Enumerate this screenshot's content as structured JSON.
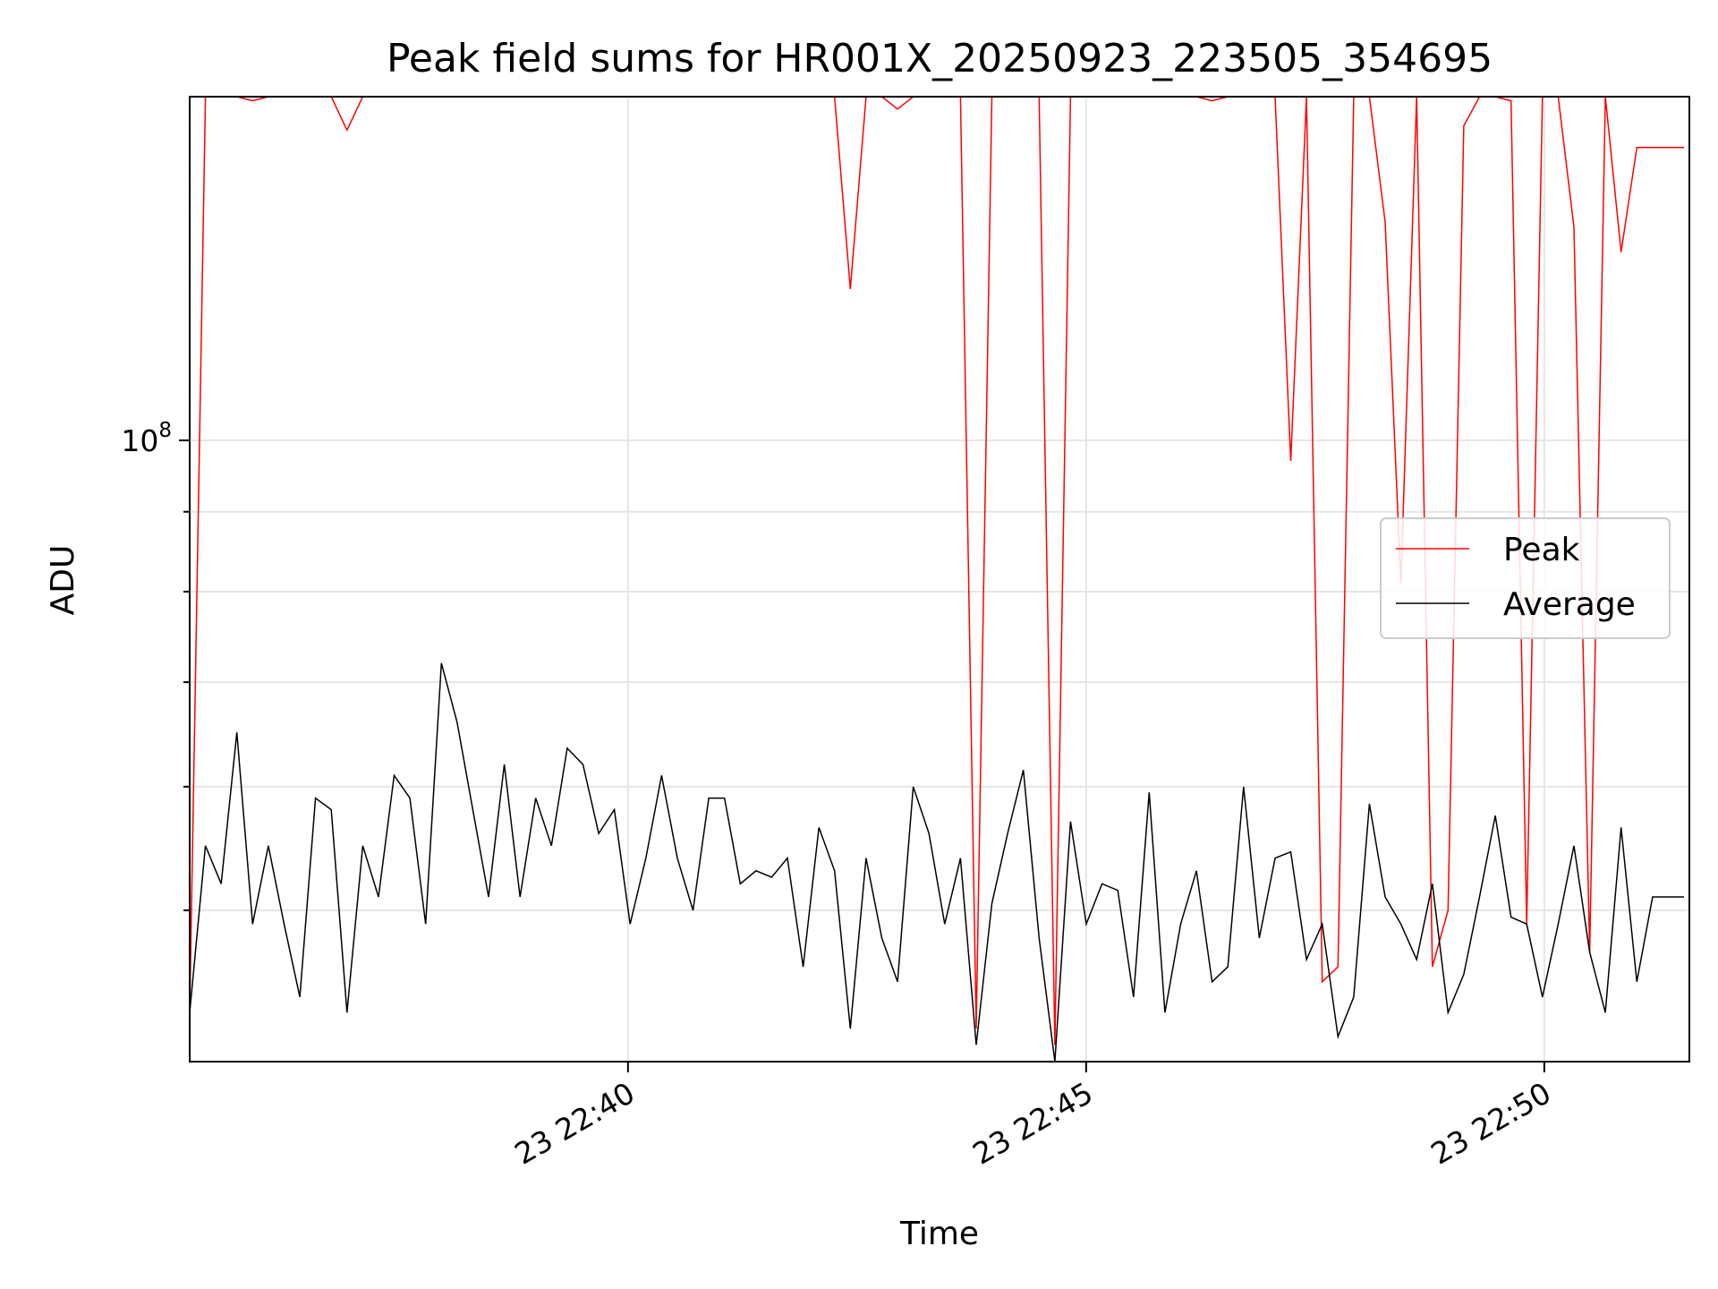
{
  "chart_data": {
    "type": "line",
    "title": "Peak field sums for HR001X_20250923_223505_354695",
    "xlabel": "Time",
    "ylabel": "ADU",
    "yscale": "log",
    "grid": true,
    "legend_position": "center-right",
    "x_range": [
      "2025-09-23 22:35:13",
      "2025-09-23 22:51:35"
    ],
    "y_range": [
      40000000.0,
      166000000.0
    ],
    "x_ticks": [
      {
        "value": "2025-09-23 22:40:00",
        "label": "23 22:40"
      },
      {
        "value": "2025-09-23 22:45:00",
        "label": "23 22:45"
      },
      {
        "value": "2025-09-23 22:50:00",
        "label": "23 22:50"
      }
    ],
    "y_ticks": [
      {
        "value": 100000000,
        "base": "10",
        "exponent": "8"
      }
    ],
    "series_times_start": "2025-09-23 22:35:13",
    "series_interval_seconds": 10.3,
    "series": [
      {
        "name": "Peak",
        "color": "#ff0000",
        "values": [
          43000000.0,
          166000000.0,
          166000000.0,
          166000000.0,
          165000000.0,
          166000000.0,
          166000000.0,
          166000000.0,
          166000000.0,
          166000000.0,
          158000000.0,
          166000000.0,
          166000000.0,
          166000000.0,
          166000000.0,
          166000000.0,
          166000000.0,
          166000000.0,
          166000000.0,
          166000000.0,
          166000000.0,
          166000000.0,
          166000000.0,
          166000000.0,
          166000000.0,
          166000000.0,
          166000000.0,
          166000000.0,
          166000000.0,
          166000000.0,
          166000000.0,
          166000000.0,
          166000000.0,
          166000000.0,
          166000000.0,
          166000000.0,
          166000000.0,
          166000000.0,
          166000000.0,
          166000000.0,
          166000000.0,
          166000000.0,
          125000000.0,
          166000000.0,
          166000000.0,
          163000000.0,
          166000000.0,
          166000000.0,
          166000000.0,
          166000000.0,
          42000000.0,
          166000000.0,
          166000000.0,
          166000000.0,
          166000000.0,
          41000000.0,
          166000000.0,
          166000000.0,
          166000000.0,
          166000000.0,
          166000000.0,
          166000000.0,
          166000000.0,
          166000000.0,
          166000000.0,
          165000000.0,
          166000000.0,
          166000000.0,
          166000000.0,
          166000000.0,
          97000000.0,
          166000000.0,
          45000000.0,
          46000000.0,
          166000000.0,
          166000000.0,
          138000000.0,
          81000000.0,
          166000000.0,
          46000000.0,
          50000000.0,
          159000000.0,
          166000000.0,
          166000000.0,
          165000000.0,
          49000000.0,
          166000000.0,
          166000000.0,
          137000000.0,
          47000000.0,
          166000000.0,
          132000000.0,
          154000000.0,
          154000000.0,
          154000000.0,
          154000000.0
        ]
      },
      {
        "name": "Average",
        "color": "#000000",
        "values": [
          43000000.0,
          55000000.0,
          52000000.0,
          65000000.0,
          49000000.0,
          55000000.0,
          49000000.0,
          44000000.0,
          59000000.0,
          58000000.0,
          43000000.0,
          55000000.0,
          51000000.0,
          61000000.0,
          59000000.0,
          49000000.0,
          72000000.0,
          66000000.0,
          58000000.0,
          51000000.0,
          62000000.0,
          51000000.0,
          59000000.0,
          55000000.0,
          63500000.0,
          62000000.0,
          56000000.0,
          58000000.0,
          49000000.0,
          54000000.0,
          61000000.0,
          54000000.0,
          50000000.0,
          59000000.0,
          59000000.0,
          52000000.0,
          53000000.0,
          52500000.0,
          54000000.0,
          46000000.0,
          56500000.0,
          53000000.0,
          42000000.0,
          54000000.0,
          48000000.0,
          45000000.0,
          60000000.0,
          56000000.0,
          49000000.0,
          54000000.0,
          41000000.0,
          50500000.0,
          56000000.0,
          61500000.0,
          48000000.0,
          40000000.0,
          57000000.0,
          49000000.0,
          52000000.0,
          51500000.0,
          44000000.0,
          59500000.0,
          43000000.0,
          49000000.0,
          53000000.0,
          45000000.0,
          46000000.0,
          60000000.0,
          48000000.0,
          54000000.0,
          54500000.0,
          46500000.0,
          49000000.0,
          41500000.0,
          44000000.0,
          58500000.0,
          51000000.0,
          49000000.0,
          46500000.0,
          52000000.0,
          43000000.0,
          45500000.0,
          51000000.0,
          57500000.0,
          49500000.0,
          49000000.0,
          44000000.0,
          49000000.0,
          55000000.0,
          47000000.0,
          43000000.0,
          56500000.0,
          45000000.0,
          51000000.0,
          51000000.0,
          51000000.0
        ]
      }
    ]
  }
}
